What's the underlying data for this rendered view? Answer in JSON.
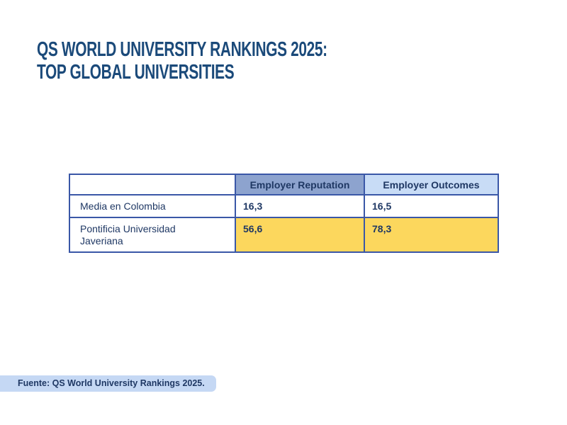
{
  "title": {
    "line1": "QS WORLD UNIVERSITY RANKINGS 2025:",
    "line2": "TOP GLOBAL UNIVERSITIES"
  },
  "table": {
    "columns": [
      "",
      "Employer Reputation",
      "Employer Outcomes"
    ],
    "rows": [
      {
        "label": "Media en Colombia",
        "values": [
          "16,3",
          "16,5"
        ],
        "highlight": false
      },
      {
        "label": "Pontificia Universidad Javeriana",
        "values": [
          "56,6",
          "78,3"
        ],
        "highlight": true
      }
    ]
  },
  "source": {
    "text": "Fuente: QS World University Rankings 2025."
  },
  "colors": {
    "title_text": "#1B4A7A",
    "table_border": "#3A57A7",
    "header_reputation_bg": "#8DA3CE",
    "header_outcomes_bg": "#C8DCF6",
    "cell_text": "#1F3864",
    "highlight_bg": "#FCD75D",
    "source_bg": "#C5D8F4"
  },
  "chart_data": {
    "type": "table",
    "title": "QS World University Rankings 2025: Top Global Universities",
    "columns": [
      "Employer Reputation",
      "Employer Outcomes"
    ],
    "rows": [
      {
        "name": "Media en Colombia",
        "employer_reputation": 16.3,
        "employer_outcomes": 16.5,
        "highlighted": false
      },
      {
        "name": "Pontificia Universidad Javeriana",
        "employer_reputation": 56.6,
        "employer_outcomes": 78.3,
        "highlighted": true
      }
    ],
    "number_format": "decimal comma",
    "source": "Fuente: QS World University Rankings 2025."
  }
}
